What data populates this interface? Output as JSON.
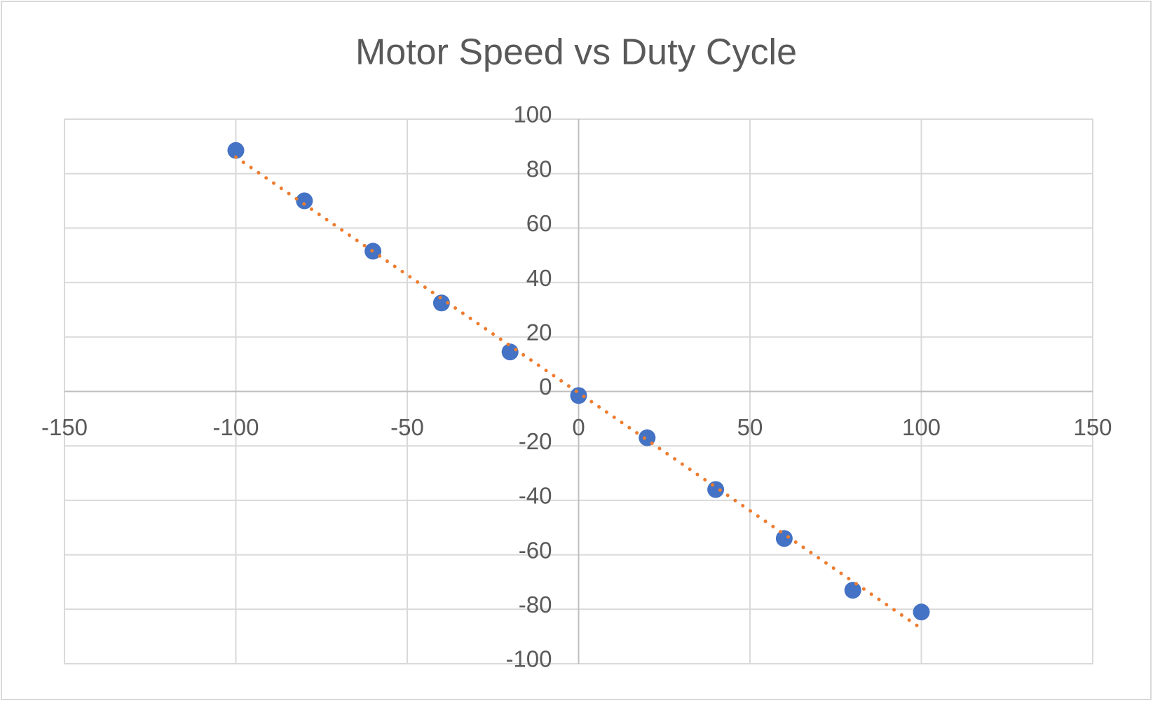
{
  "chart_data": {
    "type": "scatter",
    "title": "Motor Speed vs Duty Cycle",
    "x": [
      -100,
      -80,
      -60,
      -40,
      -20,
      0,
      20,
      40,
      60,
      80,
      100
    ],
    "series": [
      {
        "color": "#4472c4",
        "values": [
          88.5,
          70,
          51.5,
          32.5,
          14.5,
          -1.5,
          -17,
          -36,
          -54,
          -73,
          -81
        ]
      }
    ],
    "trendline": {
      "type": "linear",
      "color": "#ed7d31",
      "style": "dotted"
    },
    "xlim": [
      -150,
      150
    ],
    "xticks": [
      -150,
      -100,
      -50,
      0,
      50,
      100,
      150
    ],
    "ylim": [
      -100,
      100
    ],
    "yticks": [
      -100,
      -80,
      -60,
      -40,
      -20,
      0,
      20,
      40,
      60,
      80,
      100
    ],
    "grid": true
  }
}
